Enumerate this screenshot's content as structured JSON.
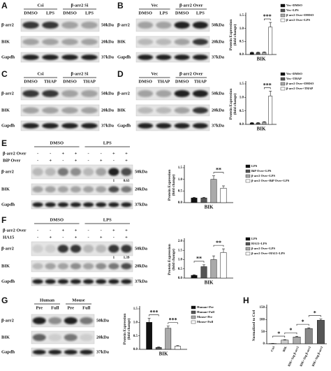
{
  "panels": [
    {
      "letter": "A",
      "groups": [
        "Csi",
        "β-arr2 Si"
      ],
      "lanes": [
        "DMSO",
        "LPS",
        "DMSO",
        "LPS"
      ],
      "rows": [
        {
          "name": "β-arr2",
          "size": "50kDa"
        },
        {
          "name": "BIK",
          "size": "20kDa"
        },
        {
          "name": "Gapdh",
          "size": "37kDa"
        }
      ]
    },
    {
      "letter": "B",
      "groups": [
        "Vec",
        "β-arr2 Over"
      ],
      "lanes": [
        "DMSO",
        "LPS",
        "DMSO",
        "LPS"
      ],
      "rows": [
        {
          "name": "β-arr2",
          "size": "50kDa"
        },
        {
          "name": "BIK",
          "size": "20kDa"
        },
        {
          "name": "Gapdh",
          "size": "37kDa"
        }
      ]
    },
    {
      "letter": "C",
      "groups": [
        "Csi",
        "β-arr2 Si"
      ],
      "lanes": [
        "DMSO",
        "THAP",
        "DMSO",
        "THAP"
      ],
      "rows": [
        {
          "name": "β-arr2",
          "size": "50kDa"
        },
        {
          "name": "BIK",
          "size": "20kDa"
        },
        {
          "name": "Gapdh",
          "size": "37kDa"
        }
      ]
    },
    {
      "letter": "D",
      "groups": [
        "Vec",
        "β-arr2 Over"
      ],
      "lanes": [
        "DMSO",
        "THAP",
        "DMSO",
        "THAP"
      ],
      "rows": [
        {
          "name": "β-arr2",
          "size": "50kDa"
        },
        {
          "name": "BIK",
          "size": "20kDa"
        },
        {
          "name": "Gapdh",
          "size": "37kDa"
        }
      ]
    },
    {
      "letter": "E",
      "groups": [
        "DMSO",
        "LPS"
      ],
      "treatments": [
        {
          "name": "β-arr2 Over",
          "signs": [
            "-",
            "-",
            "+",
            "+",
            "-",
            "-",
            "+",
            "+"
          ]
        },
        {
          "name": "BiP Over",
          "signs": [
            "-",
            "+",
            "-",
            "+",
            "-",
            "+",
            "-",
            "+"
          ]
        }
      ],
      "quant": [
        "1",
        "0.63"
      ],
      "rows": [
        {
          "name": "β-arr2",
          "size": "50kDa"
        },
        {
          "name": "BIK",
          "size": "20kDa"
        },
        {
          "name": "Gapdh",
          "size": "37kDa"
        }
      ]
    },
    {
      "letter": "F",
      "groups": [
        "DMSO",
        "LPS"
      ],
      "treatments": [
        {
          "name": "β-arr2 Over",
          "signs": [
            "-",
            "-",
            "+",
            "+",
            "-",
            "-",
            "+",
            "+"
          ]
        },
        {
          "name": "HA15",
          "signs": [
            "-",
            "+",
            "-",
            "+",
            "-",
            "+",
            "-",
            "+"
          ]
        }
      ],
      "quant": [
        "1",
        "1.39"
      ],
      "rows": [
        {
          "name": "β-arr2",
          "size": "50kDa"
        },
        {
          "name": "BIK",
          "size": "20kDa"
        },
        {
          "name": "Gapdh",
          "size": "37kDa"
        }
      ]
    },
    {
      "letter": "G",
      "groups": [
        "Human",
        "Mouse"
      ],
      "lanes": [
        "Pre",
        "Full",
        "Pre",
        "Full"
      ],
      "rows": [
        {
          "name": "β-arr2",
          "size": "50kDa"
        },
        {
          "name": "BIK",
          "size": "20kDa"
        },
        {
          "name": "Gapdh",
          "size": "37kDa"
        }
      ]
    }
  ],
  "chart_data": [
    {
      "type": "bar",
      "ylabel": "Protein Expression\n(fold change)",
      "xlabel": "BIK",
      "ylim": [
        0,
        1.5
      ],
      "yticks": [
        {
          "value": 0,
          "label": "0.0"
        },
        0.5,
        {
          "value": 1,
          "label": "1.0"
        },
        1.5
      ],
      "series": [
        {
          "name": "Vec+DMSO",
          "color": "#111111",
          "values": [
            0.07
          ],
          "errors": [
            0.02
          ]
        },
        {
          "name": "Vec+LPS",
          "color": "#555555",
          "values": [
            0.07
          ],
          "errors": [
            0.02
          ]
        },
        {
          "name": "β-arr2 Over+DMSO",
          "color": "#aaaaaa",
          "values": [
            0.08
          ],
          "errors": [
            0.02
          ]
        },
        {
          "name": "β-arr2 Over+LPS",
          "color": "#ffffff",
          "values": [
            1.05
          ],
          "errors": [
            0.18
          ]
        }
      ],
      "annotations": [
        {
          "text": "***",
          "bars": [
            2,
            3
          ]
        }
      ]
    },
    {
      "type": "bar",
      "ylabel": "Protein Expression\n(fold change)",
      "xlabel": "BIK",
      "ylim": [
        0,
        1.5
      ],
      "yticks": [
        {
          "value": 0,
          "label": "0.0"
        },
        0.5,
        {
          "value": 1,
          "label": "1.0"
        },
        1.5
      ],
      "series": [
        {
          "name": "Vec+DMSO",
          "color": "#111111",
          "values": [
            0.05
          ],
          "errors": [
            0.02
          ]
        },
        {
          "name": "Vec+THAP",
          "color": "#555555",
          "values": [
            0.05
          ],
          "errors": [
            0.02
          ]
        },
        {
          "name": "β-arr2 Over+DMSO",
          "color": "#aaaaaa",
          "values": [
            0.08
          ],
          "errors": [
            0.02
          ]
        },
        {
          "name": "β-arr2 Over+THAP",
          "color": "#ffffff",
          "values": [
            1.05
          ],
          "errors": [
            0.18
          ]
        }
      ],
      "annotations": [
        {
          "text": "***",
          "bars": [
            2,
            3
          ]
        }
      ]
    },
    {
      "type": "bar",
      "ylabel": "Protein Expression\n(fold change)",
      "xlabel": "BIK",
      "ylim": [
        0,
        1.5
      ],
      "yticks": [
        {
          "value": 0,
          "label": "0.0"
        },
        0.5,
        {
          "value": 1,
          "label": "1.0"
        },
        1.5
      ],
      "series": [
        {
          "name": "LPS",
          "color": "#111111",
          "values": [
            0.2
          ],
          "errors": [
            0.03
          ]
        },
        {
          "name": "BiP Over+LPS",
          "color": "#555555",
          "values": [
            0.2
          ],
          "errors": [
            0.03
          ]
        },
        {
          "name": "β-arr2 Over+LPS",
          "color": "#aaaaaa",
          "values": [
            1.0
          ],
          "errors": [
            0.15
          ]
        },
        {
          "name": "β-arr2 Over+BiP Over+LPS",
          "color": "#ffffff",
          "values": [
            0.62
          ],
          "errors": [
            0.1
          ]
        }
      ],
      "annotations": [
        {
          "text": "**",
          "bars": [
            2,
            3
          ]
        }
      ]
    },
    {
      "type": "bar",
      "ylabel": "Protein Expression\n(fold change)",
      "xlabel": "BIK",
      "ylim": [
        0,
        2
      ],
      "yticks": [
        {
          "value": 0,
          "label": "0.0"
        },
        0.5,
        {
          "value": 1,
          "label": "1.0"
        },
        1.5,
        {
          "value": 2,
          "label": "2.0"
        }
      ],
      "series": [
        {
          "name": "LPS",
          "color": "#111111",
          "values": [
            0.15
          ],
          "errors": [
            0.03
          ]
        },
        {
          "name": "HA15+LPS",
          "color": "#555555",
          "values": [
            0.62
          ],
          "errors": [
            0.1
          ]
        },
        {
          "name": "β-arr2 Over+LPS",
          "color": "#aaaaaa",
          "values": [
            1.0
          ],
          "errors": [
            0.2
          ]
        },
        {
          "name": "β-arr2 Over+HA15+LPS",
          "color": "#ffffff",
          "values": [
            1.38
          ],
          "errors": [
            0.2
          ]
        }
      ],
      "annotations": [
        {
          "text": "**",
          "bars": [
            0,
            1
          ]
        },
        {
          "text": "**",
          "bars": [
            2,
            3
          ]
        }
      ]
    },
    {
      "type": "bar",
      "ylabel": "Protein Expression\n(fold change)",
      "xlabel": "BIK",
      "ylim": [
        0,
        1.5
      ],
      "yticks": [
        {
          "value": 0,
          "label": "0.0"
        },
        0.5,
        {
          "value": 1,
          "label": "1.0"
        },
        1.5
      ],
      "series": [
        {
          "name": "Human+Pre",
          "color": "#111111",
          "values": [
            1.0
          ],
          "errors": [
            0.15
          ]
        },
        {
          "name": "Human+Full",
          "color": "#555555",
          "values": [
            0.07
          ],
          "errors": [
            0.02
          ]
        },
        {
          "name": "Mouse+Pre",
          "color": "#aaaaaa",
          "values": [
            0.78
          ],
          "errors": [
            0.08
          ]
        },
        {
          "name": "Mouse+Full",
          "color": "#ffffff",
          "values": [
            0.12
          ],
          "errors": [
            0.02
          ]
        }
      ],
      "annotations": [
        {
          "text": "***",
          "bars": [
            0,
            1
          ]
        },
        {
          "text": "***",
          "bars": [
            2,
            3
          ]
        }
      ]
    },
    {
      "type": "bar",
      "letter": "H",
      "ylabel": "Normalized to Ctrl",
      "ylim": [
        0,
        150
      ],
      "yticks": [
        0,
        50,
        100,
        150
      ],
      "categories": [
        "Ctrl",
        "BIK",
        "BIK+1ug β-arr2",
        "BIK+2ug β-arr2",
        "BIK+3ug β-arr2"
      ],
      "values": [
        1,
        15,
        28,
        63,
        97
      ],
      "errors": [
        0.5,
        2,
        3,
        3,
        5
      ],
      "colors": [
        "#eeeeee",
        "#cccccc",
        "#aaaaaa",
        "#888888",
        "#555555"
      ],
      "annotations": [
        {
          "text": "*",
          "bars": [
            0,
            1
          ]
        },
        {
          "text": "*",
          "bars": [
            1,
            2
          ]
        },
        {
          "text": "*",
          "bars": [
            2,
            3
          ]
        },
        {
          "text": "*",
          "bars": [
            3,
            4
          ]
        }
      ]
    }
  ]
}
